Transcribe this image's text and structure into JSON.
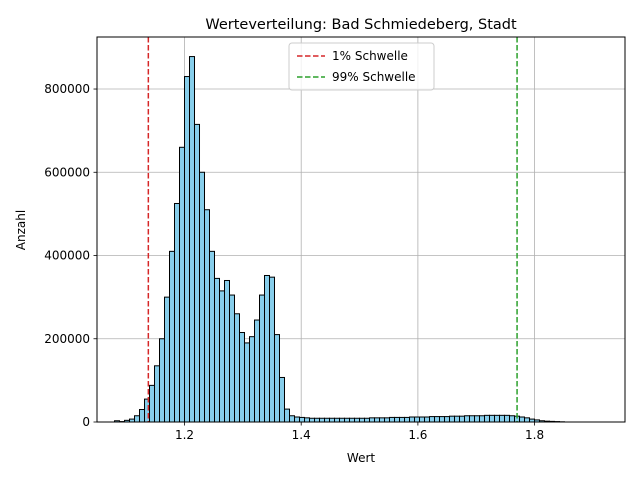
{
  "chart_data": {
    "type": "histogram",
    "title": "Werteverteilung: Bad Schmiedeberg, Stadt",
    "xlabel": "Wert",
    "ylabel": "Anzahl",
    "xlim": [
      1.05,
      1.955
    ],
    "ylim": [
      0,
      925000
    ],
    "x_ticks": [
      1.2,
      1.4,
      1.6,
      1.8
    ],
    "x_tick_labels": [
      "1.2",
      "1.4",
      "1.6",
      "1.8"
    ],
    "y_ticks": [
      0,
      200000,
      400000,
      600000,
      800000
    ],
    "y_tick_labels": [
      "0",
      "200000",
      "400000",
      "600000",
      "800000"
    ],
    "grid": true,
    "legend_position": "top-center",
    "bin_start": 1.08,
    "bin_width": 0.00857,
    "counts": [
      3000,
      1000,
      4000,
      7000,
      15000,
      30000,
      55000,
      88000,
      135000,
      200000,
      300000,
      410000,
      525000,
      660000,
      830000,
      878000,
      715000,
      600000,
      510000,
      410000,
      345000,
      315000,
      340000,
      305000,
      260000,
      215000,
      190000,
      205000,
      245000,
      305000,
      352000,
      348000,
      210000,
      107000,
      31000,
      15000,
      12000,
      11000,
      10000,
      9000,
      9000,
      9000,
      9000,
      9000,
      9000,
      9000,
      9000,
      9000,
      9000,
      9000,
      9000,
      10000,
      10000,
      10000,
      10000,
      11000,
      11000,
      11000,
      11000,
      12000,
      12000,
      12000,
      12000,
      13000,
      13000,
      13000,
      13000,
      14000,
      14000,
      14000,
      15000,
      15000,
      15000,
      15000,
      16000,
      16000,
      16000,
      16000,
      16000,
      15000,
      14000,
      12000,
      10000,
      7000,
      5000,
      3000,
      2000,
      1500,
      1000,
      500
    ],
    "bar_color": "#87CEEB",
    "bar_edge_color": "#000000",
    "thresholds": [
      {
        "name": "1% Schwelle",
        "value": 1.138,
        "color": "#d62728"
      },
      {
        "name": "99% Schwelle",
        "value": 1.77,
        "color": "#2ca02c"
      }
    ]
  }
}
